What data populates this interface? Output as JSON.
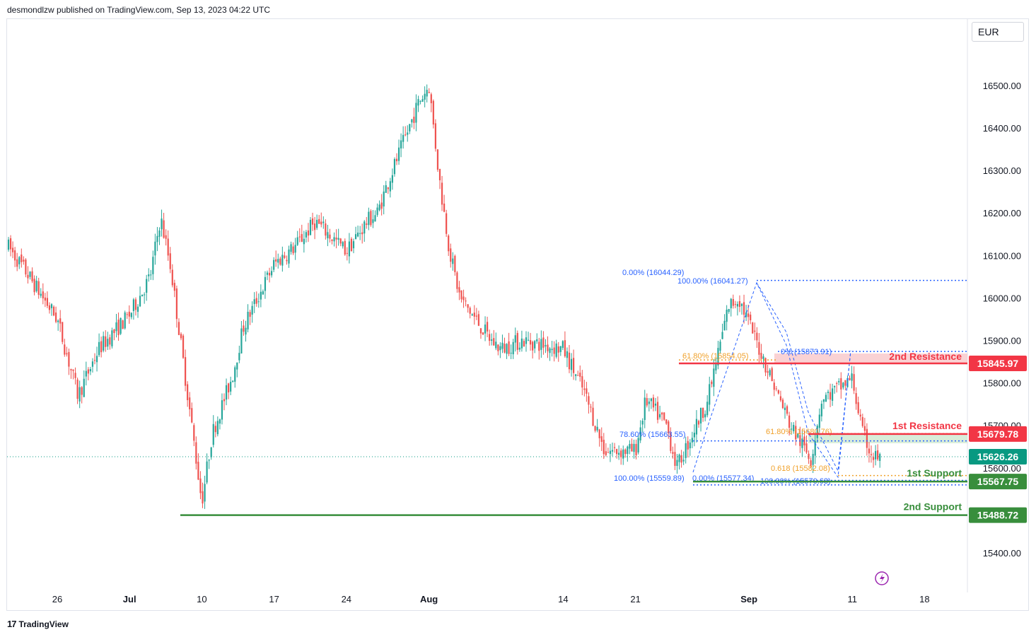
{
  "header": {
    "publisher": "desmondlzw published on TradingView.com, Sep 13, 2023 04:22 UTC"
  },
  "currency": "EUR",
  "brand": {
    "logo": "17",
    "name": "TradingView"
  },
  "colors": {
    "up": "#26a69a",
    "down": "#ef5350",
    "resistance": "#f23645",
    "support": "#388e3c",
    "fib_blue": "#2962ff",
    "fib_orange": "#f0a12b",
    "zone_red": "#f8bfc2",
    "zone_green": "#c8e6c9",
    "last_price": "#089981"
  },
  "chart_data": {
    "type": "candlestick",
    "symbol_currency": "EUR",
    "y_ticks": [
      "16500.00",
      "16400.00",
      "16300.00",
      "16200.00",
      "16100.00",
      "16000.00",
      "15900.00",
      "15800.00",
      "15700.00",
      "15600.00",
      "15400.00"
    ],
    "x_ticks": [
      "26",
      "Jul",
      "10",
      "17",
      "24",
      "Aug",
      "14",
      "21",
      "Sep",
      "11",
      "18"
    ],
    "ohlc_anchors": [
      [
        "2023-06-21",
        16130
      ],
      [
        "2023-06-23",
        16060
      ],
      [
        "2023-06-26",
        15950
      ],
      [
        "2023-06-28",
        15770
      ],
      [
        "2023-06-30",
        15880
      ],
      [
        "2023-07-03",
        15960
      ],
      [
        "2023-07-05",
        16050
      ],
      [
        "2023-07-06",
        16190
      ],
      [
        "2023-07-07",
        16070
      ],
      [
        "2023-07-10",
        15520
      ],
      [
        "2023-07-11",
        15680
      ],
      [
        "2023-07-13",
        15820
      ],
      [
        "2023-07-14",
        15930
      ],
      [
        "2023-07-17",
        16080
      ],
      [
        "2023-07-19",
        16120
      ],
      [
        "2023-07-21",
        16180
      ],
      [
        "2023-07-24",
        16110
      ],
      [
        "2023-07-26",
        16180
      ],
      [
        "2023-07-27",
        16200
      ],
      [
        "2023-07-28",
        16270
      ],
      [
        "2023-07-31",
        16460
      ],
      [
        "2023-08-01",
        16500
      ],
      [
        "2023-08-02",
        16280
      ],
      [
        "2023-08-03",
        16110
      ],
      [
        "2023-08-04",
        16000
      ],
      [
        "2023-08-07",
        15900
      ],
      [
        "2023-08-08",
        15880
      ],
      [
        "2023-08-10",
        15900
      ],
      [
        "2023-08-14",
        15880
      ],
      [
        "2023-08-16",
        15780
      ],
      [
        "2023-08-18",
        15640
      ],
      [
        "2023-08-21",
        15640
      ],
      [
        "2023-08-22",
        15760
      ],
      [
        "2023-08-24",
        15700
      ],
      [
        "2023-08-25",
        15600
      ],
      [
        "2023-08-28",
        15760
      ],
      [
        "2023-08-30",
        15980
      ],
      [
        "2023-08-31",
        16000
      ],
      [
        "2023-09-01",
        15940
      ],
      [
        "2023-09-04",
        15760
      ],
      [
        "2023-09-05",
        15700
      ],
      [
        "2023-09-07",
        15620
      ],
      [
        "2023-09-08",
        15760
      ],
      [
        "2023-09-11",
        15810
      ],
      [
        "2023-09-12",
        15680
      ],
      [
        "2023-09-13",
        15626
      ]
    ],
    "levels": [
      {
        "name": "2nd Resistance",
        "price": 15845.97,
        "label": "15845.97"
      },
      {
        "name": "1st Resistance",
        "price": 15679.78,
        "label": "15679.78"
      },
      {
        "name": "1st Support",
        "price": 15567.75,
        "label": "15567.75"
      },
      {
        "name": "2nd Support",
        "price": 15488.72,
        "label": "15488.72"
      }
    ],
    "last_price": {
      "price": 15626.26,
      "label": "15626.26"
    },
    "fib_annotations": [
      {
        "text": "0.00% (16044.29)",
        "color": "blue"
      },
      {
        "text": "100.00% (16041.27)",
        "color": "blue"
      },
      {
        "text": "61.80% (15854.05)",
        "color": "orange"
      },
      {
        "text": "0% (15873.91)",
        "color": "blue"
      },
      {
        "text": "78.60% (15663.55)",
        "color": "blue"
      },
      {
        "text": "61.80% (15680.76)",
        "color": "orange"
      },
      {
        "text": "0.618 (15582.08)",
        "color": "orange"
      },
      {
        "text": "100.00% (15559.89)",
        "color": "blue"
      },
      {
        "text": "0.00% (15577.34)",
        "color": "blue"
      },
      {
        "text": "100.00% (15570.63)",
        "color": "blue"
      }
    ]
  }
}
